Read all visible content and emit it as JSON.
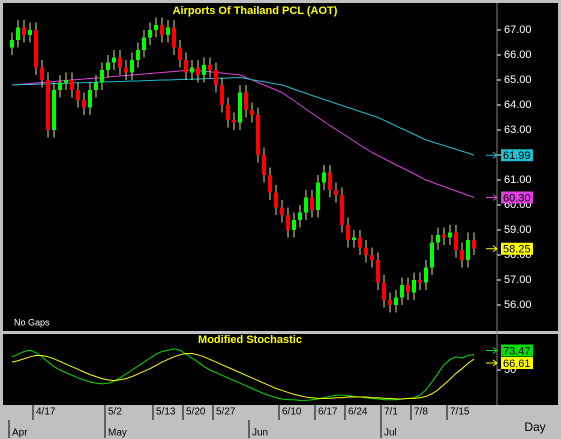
{
  "chart_data": [
    {
      "type": "candlestick",
      "title": "Airports Of Thailand PCL (AOT)",
      "note": "No Gaps",
      "x_unit": "Day",
      "categories": [
        null,
        null,
        null,
        null,
        "4/17",
        null,
        null,
        null,
        null,
        null,
        null,
        null,
        null,
        null,
        null,
        null,
        "5/2",
        null,
        null,
        null,
        null,
        null,
        null,
        null,
        "5/13",
        null,
        null,
        null,
        null,
        "5/20",
        null,
        null,
        null,
        null,
        "5/27",
        null,
        null,
        null,
        null,
        null,
        null,
        null,
        null,
        null,
        null,
        "6/10",
        null,
        null,
        null,
        null,
        null,
        "6/17",
        null,
        null,
        null,
        null,
        "6/24",
        null,
        null,
        null,
        null,
        null,
        "7/1",
        null,
        null,
        null,
        null,
        "7/8",
        null,
        null,
        null,
        null,
        null,
        "7/15",
        null,
        null,
        null,
        null
      ],
      "months": [
        "Apr",
        null,
        null,
        null,
        null,
        null,
        null,
        null,
        null,
        null,
        null,
        null,
        null,
        null,
        null,
        null,
        "May",
        null,
        null,
        null,
        null,
        null,
        null,
        null,
        null,
        null,
        null,
        null,
        null,
        null,
        null,
        null,
        null,
        null,
        null,
        null,
        null,
        null,
        null,
        null,
        "Jun",
        null,
        null,
        null,
        null,
        null,
        null,
        null,
        null,
        null,
        null,
        null,
        null,
        null,
        null,
        null,
        null,
        null,
        null,
        null,
        null,
        null,
        "Jul",
        null,
        null,
        null,
        null,
        null,
        null,
        null,
        null,
        null,
        null,
        null,
        null,
        null,
        null,
        null
      ],
      "open": [
        66.3,
        66.6,
        67.1,
        66.8,
        67.0,
        65.5,
        65.0,
        63.0,
        64.6,
        64.9,
        65.0,
        64.6,
        64.2,
        63.9,
        64.6,
        64.9,
        65.4,
        65.7,
        65.9,
        65.5,
        65.3,
        65.8,
        66.2,
        66.7,
        67.0,
        67.2,
        66.8,
        67.1,
        66.3,
        65.8,
        65.3,
        65.5,
        65.2,
        65.6,
        65.4,
        64.8,
        64.0,
        63.4,
        63.3,
        64.5,
        63.8,
        63.6,
        62.0,
        61.2,
        60.5,
        59.9,
        59.6,
        59.0,
        59.4,
        59.7,
        60.3,
        59.8,
        60.9,
        61.3,
        60.6,
        60.4,
        59.2,
        58.6,
        58.7,
        58.3,
        58.0,
        57.8,
        56.9,
        56.2,
        56.0,
        56.3,
        56.8,
        56.5,
        57.0,
        56.9,
        57.5,
        58.5,
        58.8,
        58.7,
        58.9,
        58.2,
        57.8,
        58.6
      ],
      "high": [
        66.9,
        67.4,
        67.4,
        67.3,
        67.3,
        65.8,
        65.3,
        64.9,
        65.2,
        65.3,
        65.3,
        64.9,
        64.5,
        64.9,
        65.2,
        65.7,
        66.0,
        66.2,
        66.2,
        65.8,
        66.1,
        66.5,
        67.0,
        67.3,
        67.5,
        67.5,
        67.4,
        67.4,
        66.6,
        66.1,
        65.8,
        65.8,
        65.9,
        65.9,
        65.7,
        65.1,
        64.3,
        63.7,
        64.8,
        64.8,
        64.1,
        63.9,
        62.3,
        61.5,
        60.8,
        60.2,
        59.9,
        59.7,
        60.0,
        60.6,
        60.6,
        61.2,
        61.6,
        61.6,
        60.9,
        60.7,
        59.5,
        59.0,
        59.0,
        58.6,
        58.3,
        58.1,
        57.2,
        56.5,
        56.6,
        57.1,
        57.1,
        57.3,
        57.3,
        57.8,
        58.8,
        59.1,
        59.1,
        59.2,
        59.2,
        58.5,
        58.9,
        58.9
      ],
      "low": [
        66.0,
        66.3,
        66.5,
        66.5,
        65.2,
        64.7,
        62.7,
        62.7,
        64.3,
        64.6,
        64.3,
        63.9,
        63.6,
        63.6,
        64.3,
        64.6,
        65.1,
        65.4,
        65.2,
        65.0,
        65.0,
        65.5,
        65.9,
        66.4,
        66.7,
        66.5,
        66.5,
        66.0,
        65.5,
        65.0,
        65.0,
        64.9,
        64.9,
        65.1,
        64.5,
        63.7,
        63.1,
        63.0,
        63.0,
        63.5,
        63.3,
        61.7,
        60.9,
        60.2,
        59.6,
        59.3,
        58.7,
        58.7,
        59.1,
        59.4,
        59.5,
        59.5,
        60.6,
        60.3,
        60.1,
        58.9,
        58.3,
        58.3,
        58.0,
        57.7,
        57.5,
        56.6,
        55.9,
        55.7,
        55.7,
        56.0,
        56.2,
        56.2,
        56.6,
        56.6,
        57.2,
        58.2,
        58.4,
        58.4,
        57.9,
        57.5,
        57.5,
        58.0
      ],
      "close": [
        66.6,
        67.1,
        66.8,
        67.0,
        65.5,
        65.0,
        63.0,
        64.6,
        64.9,
        65.0,
        64.6,
        64.2,
        63.9,
        64.6,
        64.9,
        65.4,
        65.7,
        65.9,
        65.5,
        65.3,
        65.8,
        66.2,
        66.7,
        67.0,
        67.2,
        66.8,
        67.1,
        66.3,
        65.8,
        65.3,
        65.5,
        65.2,
        65.6,
        65.4,
        64.8,
        64.0,
        63.4,
        63.3,
        64.5,
        63.8,
        63.6,
        62.0,
        61.2,
        60.5,
        59.9,
        59.6,
        59.0,
        59.4,
        59.7,
        60.3,
        59.8,
        60.9,
        61.3,
        60.6,
        60.4,
        59.2,
        58.6,
        58.7,
        58.3,
        58.0,
        57.8,
        56.9,
        56.2,
        56.0,
        56.3,
        56.8,
        56.5,
        57.0,
        56.9,
        57.5,
        58.5,
        58.8,
        58.7,
        58.9,
        58.2,
        57.8,
        58.6,
        58.25
      ],
      "close_label": "58.25",
      "close_label_color": "#ffff00",
      "up_color": "#00ff00",
      "down_color": "#ff0000",
      "wick_color": "#e0e080",
      "series": [
        {
          "color": "#e040e0",
          "last_value_label": "60.30",
          "values": [
            64.8,
            64.82,
            64.84,
            64.86,
            64.88,
            64.9,
            64.92,
            64.94,
            64.96,
            64.98,
            65.0,
            65.02,
            65.04,
            65.06,
            65.08,
            65.1,
            65.12,
            65.14,
            65.16,
            65.18,
            65.2,
            65.22,
            65.24,
            65.26,
            65.28,
            65.3,
            65.32,
            65.34,
            65.36,
            65.38,
            65.4,
            65.38,
            65.35,
            65.33,
            65.3,
            65.28,
            65.25,
            65.23,
            65.2,
            65.1,
            65.0,
            64.9,
            64.8,
            64.7,
            64.6,
            64.5,
            64.33,
            64.17,
            64.0,
            63.83,
            63.67,
            63.5,
            63.34,
            63.18,
            63.02,
            62.87,
            62.71,
            62.56,
            62.4,
            62.25,
            62.1,
            61.98,
            61.86,
            61.73,
            61.6,
            61.49,
            61.37,
            61.25,
            61.12,
            61.0,
            60.91,
            60.82,
            60.74,
            60.65,
            60.56,
            60.48,
            60.39,
            60.3
          ]
        },
        {
          "color": "#20c0d0",
          "last_value_label": "61.99",
          "values": [
            64.8,
            64.81,
            64.82,
            64.82,
            64.83,
            64.84,
            64.85,
            64.86,
            64.86,
            64.87,
            64.88,
            64.89,
            64.89,
            64.9,
            64.91,
            64.92,
            64.93,
            64.93,
            64.94,
            64.95,
            64.96,
            64.96,
            64.97,
            64.98,
            64.99,
            65.0,
            65.0,
            65.01,
            65.02,
            65.03,
            65.03,
            65.04,
            65.05,
            65.06,
            65.07,
            65.07,
            65.08,
            65.09,
            65.1,
            65.06,
            65.01,
            64.97,
            64.93,
            64.89,
            64.84,
            64.8,
            64.72,
            64.63,
            64.55,
            64.47,
            64.38,
            64.3,
            64.22,
            64.14,
            64.06,
            63.98,
            63.9,
            63.82,
            63.74,
            63.66,
            63.58,
            63.5,
            63.39,
            63.28,
            63.16,
            63.05,
            62.94,
            62.83,
            62.71,
            62.6,
            62.53,
            62.45,
            62.38,
            62.3,
            62.23,
            62.15,
            62.08,
            61.99
          ]
        }
      ],
      "ylim": [
        55,
        68
      ],
      "yticks": [
        {
          "value": 56,
          "label": "56.00"
        },
        {
          "value": 57,
          "label": "57.00"
        },
        {
          "value": 58,
          "label": "58.00"
        },
        {
          "value": 59,
          "label": "59.00"
        },
        {
          "value": 60,
          "label": "60.00"
        },
        {
          "value": 61,
          "label": "61.00"
        },
        {
          "value": 62,
          "label": "62.00"
        },
        {
          "value": 63,
          "label": "63.00"
        },
        {
          "value": 64,
          "label": "64.00"
        },
        {
          "value": 65,
          "label": "65.00"
        },
        {
          "value": 66,
          "label": "66.00"
        },
        {
          "value": 67,
          "label": "67.00"
        }
      ]
    },
    {
      "type": "line",
      "title": "Modified Stochastic",
      "series": [
        {
          "color": "#00e000",
          "last_value_label": "73.47",
          "values": [
            70,
            74,
            78,
            80,
            76,
            70,
            62,
            55,
            50,
            46,
            42,
            38,
            35,
            32,
            30,
            29,
            30,
            33,
            38,
            44,
            50,
            56,
            62,
            68,
            74,
            78,
            80,
            82,
            80,
            74,
            68,
            62,
            55,
            50,
            46,
            42,
            38,
            34,
            30,
            26,
            22,
            18,
            14,
            11,
            8,
            6,
            5,
            5,
            4,
            4,
            5,
            6,
            8,
            10,
            12,
            12,
            11,
            10,
            9,
            8,
            7,
            6,
            5,
            5,
            5,
            6,
            7,
            8,
            12,
            20,
            32,
            45,
            58,
            66,
            70,
            68,
            72,
            73.47
          ]
        },
        {
          "color": "#ffff00",
          "last_value_label": "66.61",
          "values": [
            62,
            64,
            67,
            70,
            72,
            72,
            70,
            67,
            63,
            59,
            55,
            51,
            47,
            43,
            40,
            37,
            35,
            34,
            35,
            37,
            40,
            44,
            48,
            52,
            57,
            62,
            66,
            70,
            73,
            75,
            75,
            73,
            70,
            66,
            62,
            58,
            54,
            50,
            46,
            42,
            38,
            34,
            30,
            26,
            22,
            19,
            16,
            13,
            11,
            9,
            8,
            7,
            7,
            7,
            8,
            8,
            9,
            9,
            9,
            9,
            8,
            8,
            7,
            7,
            6,
            6,
            7,
            7,
            8,
            10,
            14,
            20,
            28,
            36,
            45,
            52,
            60,
            66.61
          ]
        }
      ],
      "ylim": [
        0,
        100
      ],
      "yticks": [
        50
      ]
    }
  ]
}
